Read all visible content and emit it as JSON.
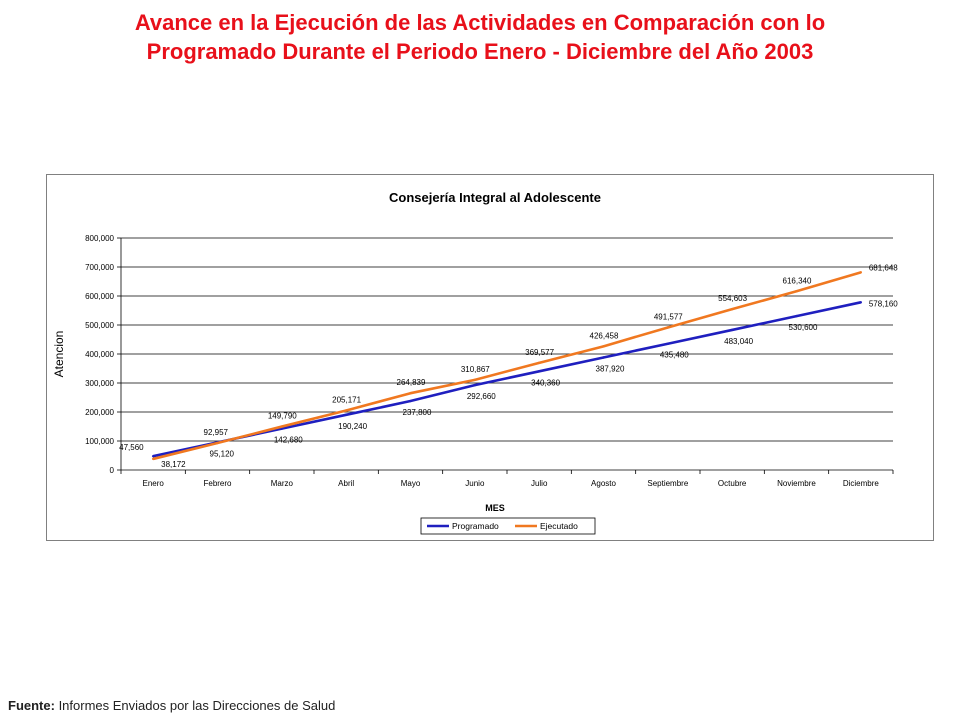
{
  "page": {
    "title_line1": "Avance en la Ejecución de las Actividades en Comparación con lo",
    "title_line2": "Programado Durante el Periodo Enero - Diciembre del Año 2003",
    "title_color": "#e8101a"
  },
  "footer": {
    "label": "Fuente:",
    "text": " Informes Enviados por las Direcciones de Salud"
  },
  "chart_data": {
    "type": "line",
    "title": "Consejería Integral al Adolescente",
    "xlabel": "MES",
    "ylabel": "Atencion",
    "categories": [
      "Enero",
      "Febrero",
      "Marzo",
      "Abril",
      "Mayo",
      "Junio",
      "Julio",
      "Agosto",
      "Septiembre",
      "Octubre",
      "Noviembre",
      "Diciembre"
    ],
    "ylim": [
      0,
      800000
    ],
    "yticks": [
      "0",
      "100,000",
      "200,000",
      "300,000",
      "400,000",
      "500,000",
      "600,000",
      "700,000",
      "800,000"
    ],
    "grid": true,
    "legend_position": "bottom",
    "series": [
      {
        "name": "Programado",
        "color": "#1f1fbf",
        "values": [
          47560,
          95120,
          142680,
          190240,
          237800,
          292660,
          340360,
          387920,
          435480,
          483040,
          530600,
          578160
        ],
        "labels": [
          "47,560",
          "95,120",
          "142,680",
          "190,240",
          "237,800",
          "292,660",
          "340,360",
          "387,920",
          "435,480",
          "483,040",
          "530,600",
          "578,160"
        ]
      },
      {
        "name": "Ejecutado",
        "color": "#f07820",
        "values": [
          38172,
          92957,
          149790,
          205171,
          264839,
          310867,
          369577,
          426458,
          491577,
          554603,
          616340,
          681648
        ],
        "labels": [
          "38,172",
          "92,957",
          "149,790",
          "205,171",
          "264,839",
          "310,867",
          "369,577",
          "426,458",
          "491,577",
          "554,603",
          "616,340",
          "681,648"
        ]
      }
    ]
  }
}
